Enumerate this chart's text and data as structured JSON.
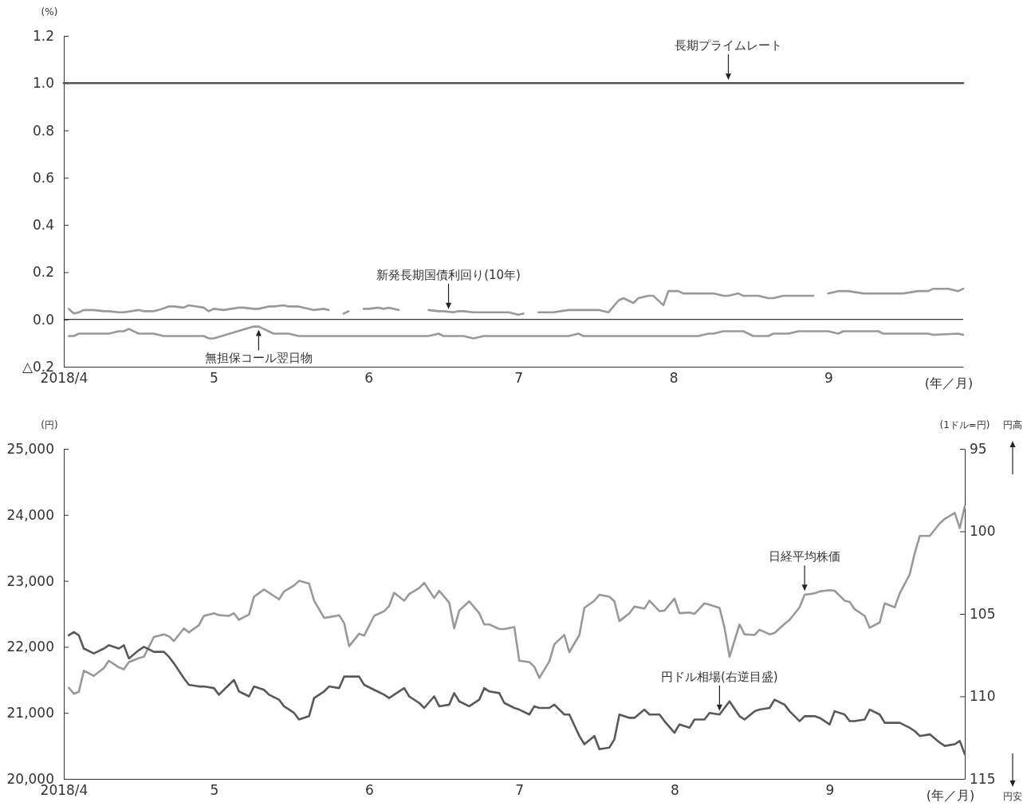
{
  "chart_data": [
    {
      "type": "line",
      "ylabel": "(%)",
      "xlabel": "(年／月)",
      "xlim": [
        "2018-04-01",
        "2018-09-28"
      ],
      "xticks": [
        {
          "value": "2018-04-01",
          "label": "2018/4"
        },
        {
          "value": "2018-05-01",
          "label": "5"
        },
        {
          "value": "2018-06-01",
          "label": "6"
        },
        {
          "value": "2018-07-01",
          "label": "7"
        },
        {
          "value": "2018-08-01",
          "label": "8"
        },
        {
          "value": "2018-09-01",
          "label": "9"
        }
      ],
      "ylim": [
        -0.2,
        1.2
      ],
      "yticks": [
        {
          "value": -0.2,
          "label": "△0.2"
        },
        {
          "value": 0,
          "label": "0.0"
        },
        {
          "value": 0.2,
          "label": "0.2"
        },
        {
          "value": 0.4,
          "label": "0.4"
        },
        {
          "value": 0.6,
          "label": "0.6"
        },
        {
          "value": 0.8,
          "label": "0.8"
        },
        {
          "value": 1,
          "label": "1.0"
        },
        {
          "value": 1.2,
          "label": "1.2"
        }
      ],
      "ref_lines": [
        {
          "axis": "y",
          "value": 0,
          "color": "#333333"
        }
      ],
      "series": [
        {
          "color": "#555555",
          "x": [
            "2018-04-01",
            "2018-09-28"
          ],
          "values": [
            1.0,
            1.0
          ]
        },
        {
          "color": "#999999",
          "x": [
            "2018-04-02",
            "2018-04-03",
            "2018-04-04",
            "2018-04-05",
            "2018-04-07",
            "2018-04-09",
            "2018-04-10",
            "2018-04-12",
            "2018-04-13",
            "2018-04-16",
            "2018-04-17",
            "2018-04-19",
            "2018-04-20",
            "2018-04-22",
            "2018-04-23",
            "2018-04-25",
            "2018-04-26",
            "2018-04-29",
            "2018-04-30",
            "2018-05-01",
            "2018-05-03",
            "2018-05-06",
            "2018-05-07",
            "2018-05-09",
            "2018-05-10",
            "2018-05-12",
            "2018-05-13",
            "2018-05-15",
            "2018-05-16",
            "2018-05-18",
            "2018-05-19",
            "2018-05-21",
            "2018-05-23",
            "2018-05-24",
            "2018-05-25",
            "2018-05-27",
            "2018-05-28",
            "2018-05-29",
            "2018-05-31",
            "2018-06-01",
            "2018-06-03",
            "2018-06-04",
            "2018-06-05",
            "2018-06-07",
            "2018-06-10",
            "2018-06-13",
            "2018-06-15",
            "2018-06-16",
            "2018-06-18",
            "2018-06-19",
            "2018-06-20",
            "2018-06-22",
            "2018-06-24",
            "2018-06-29",
            "2018-07-01",
            "2018-07-02",
            "2018-07-03",
            "2018-07-05",
            "2018-07-08",
            "2018-07-11",
            "2018-07-14",
            "2018-07-17",
            "2018-07-19",
            "2018-07-21",
            "2018-07-22",
            "2018-07-24",
            "2018-07-25",
            "2018-07-27",
            "2018-07-28",
            "2018-07-30",
            "2018-07-31",
            "2018-08-02",
            "2018-08-03",
            "2018-08-06",
            "2018-08-08",
            "2018-08-09",
            "2018-08-11",
            "2018-08-12",
            "2018-08-14",
            "2018-08-15",
            "2018-08-17",
            "2018-08-18",
            "2018-08-20",
            "2018-08-21",
            "2018-08-23",
            "2018-08-29",
            "2018-08-31",
            "2018-09-01",
            "2018-09-03",
            "2018-09-05",
            "2018-09-08",
            "2018-09-09",
            "2018-09-11",
            "2018-09-16",
            "2018-09-19",
            "2018-09-21",
            "2018-09-22",
            "2018-09-24",
            "2018-09-25",
            "2018-09-27",
            "2018-09-28"
          ],
          "values": [
            0.045,
            0.025,
            0.03,
            0.04,
            0.04,
            0.035,
            0.035,
            0.03,
            0.03,
            0.04,
            0.035,
            0.035,
            0.04,
            0.055,
            0.055,
            0.05,
            0.06,
            0.05,
            0.035,
            0.045,
            0.04,
            0.05,
            0.05,
            0.045,
            0.045,
            0.055,
            0.055,
            0.06,
            0.055,
            0.055,
            0.05,
            0.04,
            0.045,
            0.04,
            null,
            0.025,
            0.035,
            null,
            0.045,
            0.045,
            0.05,
            0.045,
            0.05,
            0.04,
            null,
            0.04,
            0.035,
            0.035,
            0.03,
            0.035,
            0.035,
            0.03,
            0.03,
            0.03,
            0.02,
            0.025,
            null,
            0.03,
            0.03,
            0.04,
            0.04,
            0.04,
            0.03,
            0.08,
            0.09,
            0.07,
            0.09,
            0.1,
            0.1,
            0.06,
            0.12,
            0.12,
            0.11,
            0.11,
            0.11,
            0.11,
            0.1,
            0.1,
            0.11,
            0.1,
            0.1,
            0.1,
            0.09,
            0.09,
            0.1,
            0.1,
            null,
            0.11,
            0.12,
            0.12,
            0.11,
            0.11,
            0.11,
            0.11,
            0.12,
            0.12,
            0.13,
            0.13,
            0.13,
            0.12,
            0.13
          ]
        },
        {
          "color": "#999999",
          "x": [
            "2018-04-02",
            "2018-04-03",
            "2018-04-04",
            "2018-04-10",
            "2018-04-12",
            "2018-04-13",
            "2018-04-14",
            "2018-04-16",
            "2018-04-19",
            "2018-04-21",
            "2018-04-29",
            "2018-04-30",
            "2018-05-01",
            "2018-05-09",
            "2018-05-10",
            "2018-05-11",
            "2018-05-13",
            "2018-05-16",
            "2018-05-18",
            "2018-06-13",
            "2018-06-15",
            "2018-06-16",
            "2018-06-20",
            "2018-06-22",
            "2018-06-24",
            "2018-07-11",
            "2018-07-13",
            "2018-07-14",
            "2018-08-06",
            "2018-08-08",
            "2018-08-09",
            "2018-08-11",
            "2018-08-15",
            "2018-08-17",
            "2018-08-20",
            "2018-08-21",
            "2018-08-24",
            "2018-08-26",
            "2018-09-01",
            "2018-09-03",
            "2018-09-04",
            "2018-09-11",
            "2018-09-12",
            "2018-09-21",
            "2018-09-22",
            "2018-09-27",
            "2018-09-28"
          ],
          "values": [
            -0.07,
            -0.07,
            -0.06,
            -0.06,
            -0.05,
            -0.05,
            -0.04,
            -0.06,
            -0.06,
            -0.07,
            -0.07,
            -0.08,
            -0.08,
            -0.03,
            -0.03,
            -0.04,
            -0.06,
            -0.06,
            -0.07,
            -0.07,
            -0.06,
            -0.07,
            -0.07,
            -0.08,
            -0.07,
            -0.07,
            -0.06,
            -0.07,
            -0.07,
            -0.06,
            -0.06,
            -0.05,
            -0.05,
            -0.07,
            -0.07,
            -0.06,
            -0.06,
            -0.05,
            -0.05,
            -0.06,
            -0.05,
            -0.05,
            -0.06,
            -0.06,
            -0.065,
            -0.06,
            -0.065
          ]
        }
      ],
      "annotations": [
        {
          "text": "長期プライムレート",
          "x": "2018-08-12",
          "y": 1.0
        },
        {
          "text": "新発長期国債利回り(10年)",
          "x": "2018-06-17",
          "y": 0.03
        },
        {
          "text": "無担保コール翌日物",
          "x": "2018-05-10",
          "y": -0.03
        }
      ]
    },
    {
      "type": "line",
      "ylabel": "(円)",
      "y2label": "(1ドル=円)",
      "xlabel": "(年／月)",
      "xlim": [
        "2018-04-01",
        "2018-09-28"
      ],
      "xticks": [
        {
          "value": "2018-04-01",
          "label": "2018/4"
        },
        {
          "value": "2018-05-01",
          "label": "5"
        },
        {
          "value": "2018-06-01",
          "label": "6"
        },
        {
          "value": "2018-07-01",
          "label": "7"
        },
        {
          "value": "2018-08-01",
          "label": "8"
        },
        {
          "value": "2018-09-01",
          "label": "9"
        }
      ],
      "ylim": [
        20000,
        25000
      ],
      "yticks": [
        {
          "value": 20000,
          "label": "20,000"
        },
        {
          "value": 21000,
          "label": "21,000"
        },
        {
          "value": 22000,
          "label": "22,000"
        },
        {
          "value": 23000,
          "label": "23,000"
        },
        {
          "value": 24000,
          "label": "24,000"
        },
        {
          "value": 25000,
          "label": "25,000"
        }
      ],
      "y2lim": [
        115,
        95
      ],
      "y2ticks": [
        95,
        100,
        105,
        110,
        115
      ],
      "series": [
        {
          "color": "#999999",
          "x": [
            "2018-04-02",
            "2018-04-03",
            "2018-04-04",
            "2018-04-05",
            "2018-04-07",
            "2018-04-09",
            "2018-04-10",
            "2018-04-12",
            "2018-04-13",
            "2018-04-14",
            "2018-04-16",
            "2018-04-17",
            "2018-04-19",
            "2018-04-21",
            "2018-04-22",
            "2018-04-23",
            "2018-04-25",
            "2018-04-26",
            "2018-04-28",
            "2018-04-29",
            "2018-05-01",
            "2018-05-02",
            "2018-05-04",
            "2018-05-05",
            "2018-05-06",
            "2018-05-08",
            "2018-05-09",
            "2018-05-11",
            "2018-05-12",
            "2018-05-14",
            "2018-05-15",
            "2018-05-17",
            "2018-05-18",
            "2018-05-20",
            "2018-05-21",
            "2018-05-23",
            "2018-05-24",
            "2018-05-26",
            "2018-05-27",
            "2018-05-28",
            "2018-05-30",
            "2018-05-31",
            "2018-06-02",
            "2018-06-04",
            "2018-06-05",
            "2018-06-06",
            "2018-06-08",
            "2018-06-09",
            "2018-06-11",
            "2018-06-12",
            "2018-06-14",
            "2018-06-15",
            "2018-06-17",
            "2018-06-18",
            "2018-06-19",
            "2018-06-21",
            "2018-06-23",
            "2018-06-24",
            "2018-06-25",
            "2018-06-27",
            "2018-06-28",
            "2018-06-30",
            "2018-07-01",
            "2018-07-03",
            "2018-07-04",
            "2018-07-05",
            "2018-07-07",
            "2018-07-08",
            "2018-07-10",
            "2018-07-11",
            "2018-07-13",
            "2018-07-14",
            "2018-07-16",
            "2018-07-17",
            "2018-07-19",
            "2018-07-20",
            "2018-07-21",
            "2018-07-23",
            "2018-07-24",
            "2018-07-26",
            "2018-07-27",
            "2018-07-29",
            "2018-07-30",
            "2018-08-01",
            "2018-08-02",
            "2018-08-04",
            "2018-08-05",
            "2018-08-07",
            "2018-08-08",
            "2018-08-10",
            "2018-08-11",
            "2018-08-12",
            "2018-08-14",
            "2018-08-15",
            "2018-08-17",
            "2018-08-18",
            "2018-08-20",
            "2018-08-21",
            "2018-08-23",
            "2018-08-24",
            "2018-08-26",
            "2018-08-27",
            "2018-08-29",
            "2018-08-30",
            "2018-09-01",
            "2018-09-02",
            "2018-09-04",
            "2018-09-05",
            "2018-09-06",
            "2018-09-08",
            "2018-09-09",
            "2018-09-11",
            "2018-09-12",
            "2018-09-14",
            "2018-09-15",
            "2018-09-17",
            "2018-09-18",
            "2018-09-19",
            "2018-09-21",
            "2018-09-23",
            "2018-09-24",
            "2018-09-26",
            "2018-09-27",
            "2018-09-28"
          ],
          "values": [
            21380,
            21290,
            21320,
            21640,
            21560,
            21680,
            21790,
            21690,
            21660,
            21770,
            21830,
            21850,
            22150,
            22190,
            22160,
            22090,
            22280,
            22220,
            22330,
            22470,
            22510,
            22480,
            22470,
            22510,
            22410,
            22490,
            22760,
            22870,
            22820,
            22720,
            22840,
            22930,
            23000,
            22960,
            22700,
            22440,
            22450,
            22480,
            22360,
            22010,
            22200,
            22170,
            22470,
            22540,
            22620,
            22820,
            22700,
            22800,
            22890,
            22970,
            22740,
            22850,
            22670,
            22280,
            22550,
            22690,
            22510,
            22340,
            22340,
            22270,
            22270,
            22300,
            21790,
            21770,
            21700,
            21530,
            21780,
            22040,
            22180,
            21920,
            22180,
            22590,
            22700,
            22790,
            22760,
            22690,
            22390,
            22510,
            22610,
            22580,
            22700,
            22540,
            22550,
            22730,
            22510,
            22520,
            22500,
            22660,
            22640,
            22590,
            22290,
            21850,
            22340,
            22190,
            22180,
            22260,
            22190,
            22210,
            22350,
            22410,
            22600,
            22790,
            22810,
            22840,
            22860,
            22850,
            22700,
            22680,
            22570,
            22470,
            22290,
            22370,
            22660,
            22600,
            22810,
            23100,
            23420,
            23680,
            23680,
            23870,
            23940,
            24030,
            23800,
            24130
          ]
        },
        {
          "color": "#595959",
          "axis": "y2",
          "x": [
            "2018-04-02",
            "2018-04-03",
            "2018-04-04",
            "2018-04-05",
            "2018-04-07",
            "2018-04-09",
            "2018-04-10",
            "2018-04-12",
            "2018-04-13",
            "2018-04-14",
            "2018-04-16",
            "2018-04-17",
            "2018-04-19",
            "2018-04-21",
            "2018-04-22",
            "2018-04-23",
            "2018-04-25",
            "2018-04-26",
            "2018-04-28",
            "2018-04-29",
            "2018-05-01",
            "2018-05-02",
            "2018-05-04",
            "2018-05-05",
            "2018-05-06",
            "2018-05-08",
            "2018-05-09",
            "2018-05-11",
            "2018-05-12",
            "2018-05-14",
            "2018-05-15",
            "2018-05-17",
            "2018-05-18",
            "2018-05-20",
            "2018-05-21",
            "2018-05-23",
            "2018-05-24",
            "2018-05-26",
            "2018-05-27",
            "2018-05-28",
            "2018-05-30",
            "2018-05-31",
            "2018-06-02",
            "2018-06-04",
            "2018-06-05",
            "2018-06-06",
            "2018-06-08",
            "2018-06-09",
            "2018-06-11",
            "2018-06-12",
            "2018-06-14",
            "2018-06-15",
            "2018-06-17",
            "2018-06-18",
            "2018-06-19",
            "2018-06-21",
            "2018-06-23",
            "2018-06-24",
            "2018-06-25",
            "2018-06-27",
            "2018-06-28",
            "2018-06-30",
            "2018-07-01",
            "2018-07-03",
            "2018-07-04",
            "2018-07-05",
            "2018-07-07",
            "2018-07-08",
            "2018-07-10",
            "2018-07-11",
            "2018-07-13",
            "2018-07-14",
            "2018-07-16",
            "2018-07-17",
            "2018-07-19",
            "2018-07-20",
            "2018-07-21",
            "2018-07-23",
            "2018-07-24",
            "2018-07-26",
            "2018-07-27",
            "2018-07-29",
            "2018-07-30",
            "2018-08-01",
            "2018-08-02",
            "2018-08-04",
            "2018-08-05",
            "2018-08-07",
            "2018-08-08",
            "2018-08-10",
            "2018-08-11",
            "2018-08-12",
            "2018-08-14",
            "2018-08-15",
            "2018-08-17",
            "2018-08-18",
            "2018-08-20",
            "2018-08-21",
            "2018-08-23",
            "2018-08-24",
            "2018-08-26",
            "2018-08-27",
            "2018-08-29",
            "2018-08-30",
            "2018-09-01",
            "2018-09-02",
            "2018-09-04",
            "2018-09-05",
            "2018-09-06",
            "2018-09-08",
            "2018-09-09",
            "2018-09-11",
            "2018-09-12",
            "2018-09-14",
            "2018-09-15",
            "2018-09-17",
            "2018-09-18",
            "2018-09-19",
            "2018-09-21",
            "2018-09-23",
            "2018-09-24",
            "2018-09-26",
            "2018-09-27",
            "2018-09-28"
          ],
          "values": [
            106.3,
            106.1,
            106.3,
            107.1,
            107.4,
            107.1,
            106.9,
            107.1,
            106.9,
            107.7,
            107.2,
            107.0,
            107.3,
            107.3,
            107.6,
            108.0,
            108.9,
            109.3,
            109.4,
            109.4,
            109.5,
            109.9,
            109.3,
            109.0,
            109.7,
            110.0,
            109.4,
            109.6,
            109.9,
            110.2,
            110.6,
            111.0,
            111.4,
            111.2,
            110.1,
            109.7,
            109.4,
            109.5,
            108.8,
            108.8,
            108.8,
            109.3,
            109.6,
            109.9,
            110.1,
            109.9,
            109.5,
            110.0,
            110.4,
            110.7,
            110.0,
            110.6,
            110.5,
            109.8,
            110.3,
            110.6,
            110.2,
            109.5,
            109.7,
            109.8,
            110.4,
            110.7,
            110.8,
            111.1,
            110.6,
            110.7,
            110.7,
            110.5,
            111.1,
            111.1,
            112.4,
            112.9,
            112.4,
            113.2,
            113.1,
            112.6,
            111.1,
            111.3,
            111.3,
            110.8,
            111.1,
            111.1,
            111.5,
            112.2,
            111.7,
            111.9,
            111.4,
            111.4,
            111.0,
            111.1,
            110.7,
            110.3,
            111.2,
            111.4,
            110.9,
            110.8,
            110.7,
            110.2,
            110.5,
            110.9,
            111.5,
            111.2,
            111.2,
            111.3,
            111.7,
            110.9,
            111.1,
            111.5,
            111.5,
            111.4,
            110.8,
            111.1,
            111.6,
            111.6,
            111.6,
            111.9,
            112.1,
            112.4,
            112.3,
            112.8,
            113.0,
            112.9,
            112.7,
            113.5
          ]
        }
      ],
      "annotations": [
        {
          "text": "日経平均株価",
          "x": "2018-08-27",
          "y": 22800
        },
        {
          "text": "円ドル相場(右逆目盛)",
          "x": "2018-08-10",
          "y": 20980
        },
        "円高",
        "円安"
      ]
    }
  ]
}
